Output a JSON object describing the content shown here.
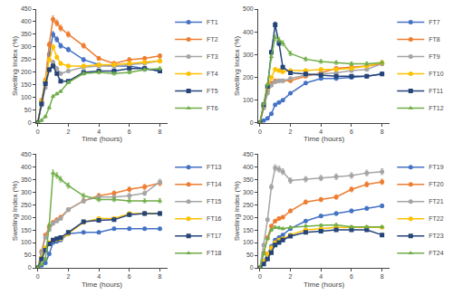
{
  "chart_data": [
    {
      "type": "line",
      "xlabel": "Time (hours)",
      "ylabel": "Swelling Index (%)",
      "x": [
        0,
        0.25,
        0.5,
        0.75,
        1.0,
        1.25,
        1.5,
        2.0,
        3.0,
        4.0,
        5.0,
        6.0,
        7.0,
        8.0
      ],
      "xlim": [
        -0.1,
        8.5
      ],
      "xticks": [
        0,
        2,
        4,
        6,
        8
      ],
      "ylim": [
        0,
        450
      ],
      "yticks": [
        0,
        50,
        100,
        150,
        200,
        250,
        300,
        350,
        400,
        450
      ],
      "grid": false,
      "legend": "upper right",
      "series": [
        {
          "name": "FT1",
          "color": "#4472C4",
          "marker": "circle",
          "values": [
            0,
            80,
            160,
            270,
            350,
            330,
            305,
            290,
            250,
            230,
            225,
            225,
            215,
            205
          ],
          "errors": [
            0,
            5,
            5,
            8.1,
            10.5,
            9.9,
            9.15,
            8.7,
            7.5,
            6.9,
            6.75,
            6.75,
            6.45,
            6.15
          ]
        },
        {
          "name": "FT2",
          "color": "#ED7D31",
          "marker": "circle",
          "values": [
            0,
            90,
            170,
            310,
            410,
            395,
            375,
            350,
            305,
            255,
            235,
            250,
            255,
            265
          ],
          "errors": [
            0,
            5,
            5.1,
            9.3,
            12.3,
            11.85,
            11.25,
            10.5,
            9.15,
            7.65,
            7.05,
            7.5,
            7.65,
            7.95
          ]
        },
        {
          "name": "FT3",
          "color": "#A5A5A5",
          "marker": "circle",
          "values": [
            0,
            70,
            140,
            210,
            240,
            215,
            195,
            205,
            220,
            225,
            225,
            230,
            235,
            245
          ],
          "errors": [
            0,
            5,
            5,
            6.3,
            7.2,
            6.45,
            5.85,
            6.15,
            6.6,
            6.75,
            6.75,
            6.9,
            7.05,
            7.35
          ]
        },
        {
          "name": "FT4",
          "color": "#FFC000",
          "marker": "circle",
          "values": [
            0,
            85,
            165,
            250,
            300,
            260,
            235,
            225,
            225,
            230,
            230,
            235,
            240,
            245
          ],
          "errors": [
            0,
            5,
            5,
            7.5,
            9,
            7.8,
            7.05,
            6.75,
            6.75,
            6.9,
            6.9,
            7.05,
            7.2,
            7.35
          ]
        },
        {
          "name": "FT5",
          "color": "#264478",
          "marker": "square",
          "values": [
            0,
            75,
            155,
            210,
            225,
            195,
            165,
            165,
            200,
            205,
            205,
            215,
            215,
            205
          ],
          "errors": [
            0,
            5,
            5,
            6.3,
            6.75,
            5.85,
            5,
            5,
            6,
            6.15,
            6.15,
            6.45,
            6.45,
            6.15
          ]
        },
        {
          "name": "FT6",
          "color": "#70AD47",
          "marker": "triangle",
          "values": [
            0,
            10,
            25,
            60,
            105,
            115,
            125,
            160,
            195,
            200,
            195,
            200,
            210,
            215
          ],
          "errors": [
            0,
            5,
            5,
            5,
            5,
            5,
            5,
            5,
            5.85,
            6,
            5.85,
            6,
            6.3,
            6.45
          ]
        }
      ]
    },
    {
      "type": "line",
      "xlabel": "Time (hours)",
      "ylabel": "Swelling Index (%)",
      "x": [
        0,
        0.25,
        0.5,
        0.75,
        1.0,
        1.25,
        1.5,
        2.0,
        3.0,
        4.0,
        5.0,
        6.0,
        7.0,
        8.0
      ],
      "xlim": [
        -0.1,
        8.5
      ],
      "xticks": [
        0,
        2,
        4,
        6,
        8
      ],
      "ylim": [
        0,
        500
      ],
      "yticks": [
        0,
        100,
        200,
        300,
        400,
        500
      ],
      "grid": false,
      "legend": "upper right",
      "series": [
        {
          "name": "FT7",
          "color": "#4472C4",
          "marker": "circle",
          "values": [
            0,
            10,
            20,
            40,
            80,
            90,
            100,
            130,
            175,
            195,
            195,
            200,
            205,
            215
          ],
          "errors": [
            0,
            5,
            5,
            5,
            5,
            5,
            5,
            5,
            5.25,
            5.85,
            5.85,
            6,
            6.15,
            6.45
          ]
        },
        {
          "name": "FT8",
          "color": "#ED7D31",
          "marker": "circle",
          "values": [
            0,
            70,
            140,
            175,
            185,
            185,
            185,
            185,
            205,
            220,
            240,
            245,
            250,
            260
          ],
          "errors": [
            0,
            5,
            5,
            5.25,
            5.55,
            5.55,
            5.55,
            5.55,
            6.15,
            6.6,
            7.2,
            7.35,
            7.5,
            7.8
          ]
        },
        {
          "name": "FT9",
          "color": "#A5A5A5",
          "marker": "circle",
          "values": [
            0,
            65,
            130,
            165,
            180,
            185,
            185,
            195,
            210,
            215,
            220,
            230,
            235,
            260
          ],
          "errors": [
            0,
            5,
            5,
            5,
            5.4,
            5.55,
            5.55,
            5.85,
            6.3,
            6.45,
            6.6,
            6.9,
            7.05,
            7.8
          ]
        },
        {
          "name": "FT10",
          "color": "#FFC000",
          "marker": "circle",
          "values": [
            0,
            80,
            155,
            200,
            235,
            230,
            225,
            230,
            230,
            235,
            235,
            240,
            250,
            265
          ],
          "errors": [
            0,
            5,
            5,
            6,
            7.05,
            6.9,
            6.75,
            6.9,
            6.9,
            7.05,
            7.05,
            7.2,
            7.5,
            7.95
          ]
        },
        {
          "name": "FT11",
          "color": "#264478",
          "marker": "square",
          "values": [
            0,
            80,
            160,
            310,
            430,
            350,
            245,
            220,
            215,
            210,
            205,
            205,
            205,
            215
          ],
          "errors": [
            0,
            5,
            5,
            9.3,
            12.9,
            10.5,
            7.35,
            6.6,
            6.45,
            6.3,
            6.15,
            6.15,
            6.15,
            6.45
          ]
        },
        {
          "name": "FT12",
          "color": "#70AD47",
          "marker": "triangle",
          "values": [
            0,
            85,
            170,
            290,
            375,
            365,
            350,
            305,
            280,
            270,
            265,
            260,
            260,
            265
          ],
          "errors": [
            0,
            5,
            5.1,
            8.7,
            11.25,
            10.95,
            10.5,
            9.15,
            8.4,
            8.1,
            7.95,
            7.8,
            7.8,
            7.95
          ]
        }
      ]
    },
    {
      "type": "line",
      "xlabel": "Time (hours)",
      "ylabel": "Swelling Index (%)",
      "x": [
        0,
        0.25,
        0.5,
        0.75,
        1.0,
        1.25,
        1.5,
        2.0,
        3.0,
        4.0,
        5.0,
        6.0,
        7.0,
        8.0
      ],
      "xlim": [
        -0.1,
        8.5
      ],
      "xticks": [
        0,
        2,
        4,
        6,
        8
      ],
      "ylim": [
        0,
        450
      ],
      "yticks": [
        0,
        50,
        100,
        150,
        200,
        250,
        300,
        350,
        400,
        450
      ],
      "grid": false,
      "legend": "upper right",
      "series": [
        {
          "name": "FT13",
          "color": "#4472C4",
          "marker": "circle",
          "values": [
            0,
            10,
            20,
            55,
            100,
            105,
            110,
            135,
            140,
            140,
            155,
            155,
            155,
            155
          ],
          "errors": [
            0,
            5,
            5,
            5,
            5,
            5,
            5,
            5,
            5,
            5,
            5,
            5,
            5,
            5
          ]
        },
        {
          "name": "FT14",
          "color": "#ED7D31",
          "marker": "circle",
          "values": [
            0,
            65,
            130,
            160,
            180,
            190,
            200,
            230,
            265,
            285,
            295,
            310,
            320,
            335
          ],
          "errors": [
            0,
            5,
            5,
            5,
            5.4,
            5.7,
            6,
            6.9,
            7.95,
            8.55,
            8.85,
            9.3,
            9.6,
            10.05
          ]
        },
        {
          "name": "FT15",
          "color": "#A5A5A5",
          "marker": "circle",
          "values": [
            0,
            60,
            120,
            150,
            175,
            185,
            195,
            230,
            265,
            280,
            280,
            285,
            295,
            340
          ],
          "errors": [
            0,
            5,
            5,
            5,
            5.25,
            5.55,
            5.85,
            6.9,
            7.95,
            8.4,
            8.4,
            8.55,
            8.85,
            10.2
          ]
        },
        {
          "name": "FT16",
          "color": "#FFC000",
          "marker": "circle",
          "values": [
            0,
            40,
            80,
            100,
            110,
            113,
            115,
            135,
            180,
            195,
            195,
            215,
            215,
            215
          ],
          "errors": [
            0,
            5,
            5,
            5,
            5,
            5,
            5,
            5,
            5.4,
            5.85,
            5.85,
            6.45,
            6.45,
            6.45
          ]
        },
        {
          "name": "FT17",
          "color": "#264478",
          "marker": "square",
          "values": [
            0,
            35,
            70,
            95,
            110,
            115,
            120,
            140,
            182,
            188,
            190,
            210,
            215,
            215
          ],
          "errors": [
            0,
            5,
            5,
            5,
            5,
            5,
            5,
            5,
            5.46,
            5.64,
            5.7,
            6.3,
            6.45,
            6.45
          ]
        },
        {
          "name": "FT18",
          "color": "#70AD47",
          "marker": "triangle",
          "values": [
            0,
            15,
            35,
            170,
            375,
            365,
            350,
            325,
            285,
            270,
            270,
            265,
            265,
            265
          ],
          "errors": [
            0,
            5,
            5,
            5.1,
            11.25,
            10.95,
            10.5,
            9.75,
            8.55,
            8.1,
            8.1,
            7.95,
            7.95,
            7.95
          ]
        }
      ]
    },
    {
      "type": "line",
      "xlabel": "Time (hours)",
      "ylabel": "Swelling Index (%)",
      "x": [
        0,
        0.25,
        0.5,
        0.75,
        1.0,
        1.25,
        1.5,
        2.0,
        3.0,
        4.0,
        5.0,
        6.0,
        7.0,
        8.0
      ],
      "xlim": [
        -0.1,
        8.5
      ],
      "xticks": [
        0,
        2,
        4,
        6,
        8
      ],
      "ylim": [
        0,
        450
      ],
      "yticks": [
        0,
        50,
        100,
        150,
        200,
        250,
        300,
        350,
        400,
        450
      ],
      "grid": false,
      "legend": "upper right",
      "series": [
        {
          "name": "FT19",
          "color": "#4472C4",
          "marker": "circle",
          "values": [
            0,
            25,
            55,
            85,
            110,
            120,
            130,
            155,
            185,
            205,
            215,
            225,
            235,
            245
          ],
          "errors": [
            0,
            5,
            5,
            5,
            5,
            5,
            5,
            5,
            5.55,
            6.15,
            6.45,
            6.75,
            7.05,
            7.35
          ]
        },
        {
          "name": "FT20",
          "color": "#ED7D31",
          "marker": "circle",
          "values": [
            0,
            60,
            120,
            165,
            185,
            195,
            200,
            225,
            260,
            270,
            280,
            310,
            330,
            340
          ],
          "errors": [
            0,
            5,
            5,
            5,
            5.55,
            5.85,
            6,
            6.75,
            7.8,
            8.1,
            8.4,
            9.3,
            9.9,
            10.2
          ]
        },
        {
          "name": "FT21",
          "color": "#A5A5A5",
          "marker": "circle",
          "values": [
            0,
            90,
            190,
            320,
            395,
            390,
            380,
            345,
            350,
            355,
            360,
            365,
            375,
            380
          ],
          "errors": [
            0,
            5,
            5.7,
            9.6,
            11.85,
            11.7,
            11.4,
            10.35,
            10.5,
            10.65,
            10.8,
            10.95,
            11.25,
            11.4
          ]
        },
        {
          "name": "FT22",
          "color": "#FFC000",
          "marker": "circle",
          "values": [
            0,
            25,
            55,
            80,
            100,
            110,
            115,
            130,
            150,
            155,
            160,
            160,
            160,
            160
          ],
          "errors": [
            0,
            5,
            5,
            5,
            5,
            5,
            5,
            5,
            5,
            5,
            5,
            5,
            5,
            5
          ]
        },
        {
          "name": "FT23",
          "color": "#264478",
          "marker": "square",
          "values": [
            0,
            15,
            35,
            60,
            90,
            100,
            110,
            125,
            140,
            145,
            150,
            150,
            150,
            130
          ],
          "errors": [
            0,
            5,
            5,
            5,
            5,
            5,
            5,
            5,
            5,
            5,
            5,
            5,
            5,
            5
          ]
        },
        {
          "name": "FT24",
          "color": "#70AD47",
          "marker": "triangle",
          "values": [
            0,
            55,
            115,
            150,
            160,
            158,
            155,
            160,
            165,
            168,
            170,
            162,
            162,
            162
          ],
          "errors": [
            0,
            5,
            5,
            5,
            5,
            5,
            5,
            5,
            5,
            5.04,
            5.1,
            5,
            5,
            5
          ]
        }
      ]
    }
  ]
}
